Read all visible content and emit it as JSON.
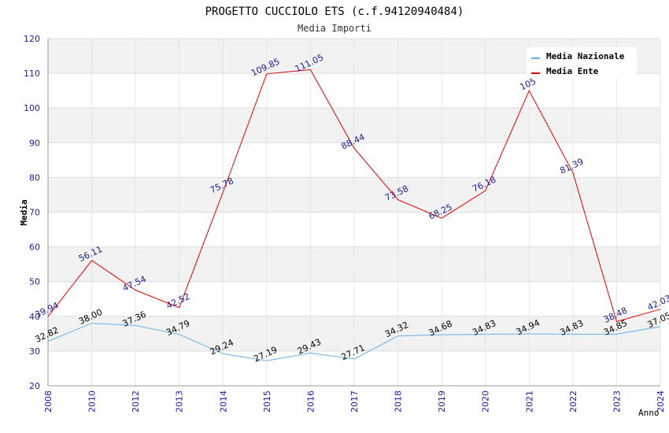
{
  "chart_data": {
    "type": "line",
    "title": "PROGETTO CUCCIOLO ETS (c.f.94120940484)",
    "subtitle": "Media Importi",
    "xlabel": "Anno",
    "ylabel": "Media",
    "ylim": [
      20,
      120
    ],
    "yticks": [
      "20",
      "30",
      "40",
      "50",
      "60",
      "70",
      "80",
      "90",
      "100",
      "110",
      "120"
    ],
    "categories": [
      "2008",
      "2010",
      "2012",
      "2013",
      "2014",
      "2015",
      "2016",
      "2017",
      "2018",
      "2019",
      "2020",
      "2021",
      "2022",
      "2023",
      "2024"
    ],
    "grid": true,
    "legend_position": "top-right",
    "series": [
      {
        "name": "Media Nazionale",
        "color": "#6aaee8",
        "label_color": "#000000",
        "values": [
          32.82,
          38.0,
          37.36,
          34.79,
          29.24,
          27.19,
          29.43,
          27.71,
          34.32,
          34.68,
          34.83,
          34.94,
          34.83,
          34.85,
          37.05
        ],
        "labels": [
          "32.82",
          "38.00",
          "37.36",
          "34.79",
          "29.24",
          "27.19",
          "29.43",
          "27.71",
          "34.32",
          "34.68",
          "34.83",
          "34.94",
          "34.83",
          "34.85",
          "37.05"
        ]
      },
      {
        "name": "Media Ente",
        "color": "#e00000",
        "label_color": "#1a1a8c",
        "values": [
          39.94,
          56.11,
          47.54,
          42.52,
          75.78,
          109.85,
          111.05,
          88.44,
          73.58,
          68.25,
          76.18,
          105.0,
          81.39,
          38.48,
          42.03
        ],
        "labels": [
          "39.94",
          "56.11",
          "47.54",
          "42.52",
          "75.78",
          "109.85",
          "111.05",
          "88.44",
          "73.58",
          "68.25",
          "76.18",
          "105",
          "81.39",
          "38.48",
          "42.03"
        ]
      }
    ]
  }
}
